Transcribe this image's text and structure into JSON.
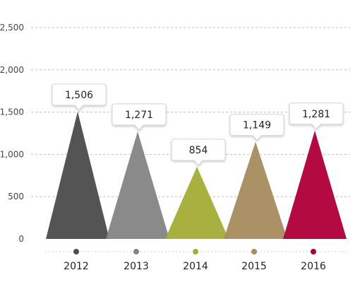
{
  "chart_data": {
    "type": "bar",
    "categories": [
      "2012",
      "2013",
      "2014",
      "2015",
      "2016"
    ],
    "values": [
      1506,
      1271,
      854,
      1149,
      1281
    ],
    "value_labels": [
      "1,506",
      "1,271",
      "854",
      "1,149",
      "1,281"
    ],
    "colors": [
      "#4d4d4d",
      "#858585",
      "#a4ad38",
      "#a88c60",
      "#b0003a"
    ],
    "ylim": [
      0,
      2500
    ],
    "yticks": [
      0,
      500,
      1000,
      1500,
      2000,
      2500
    ],
    "ytick_labels": [
      "0",
      "500",
      "1,000",
      "1,500",
      "2,000",
      "2,500"
    ],
    "grid": true,
    "title": "",
    "xlabel": "",
    "ylabel": ""
  }
}
